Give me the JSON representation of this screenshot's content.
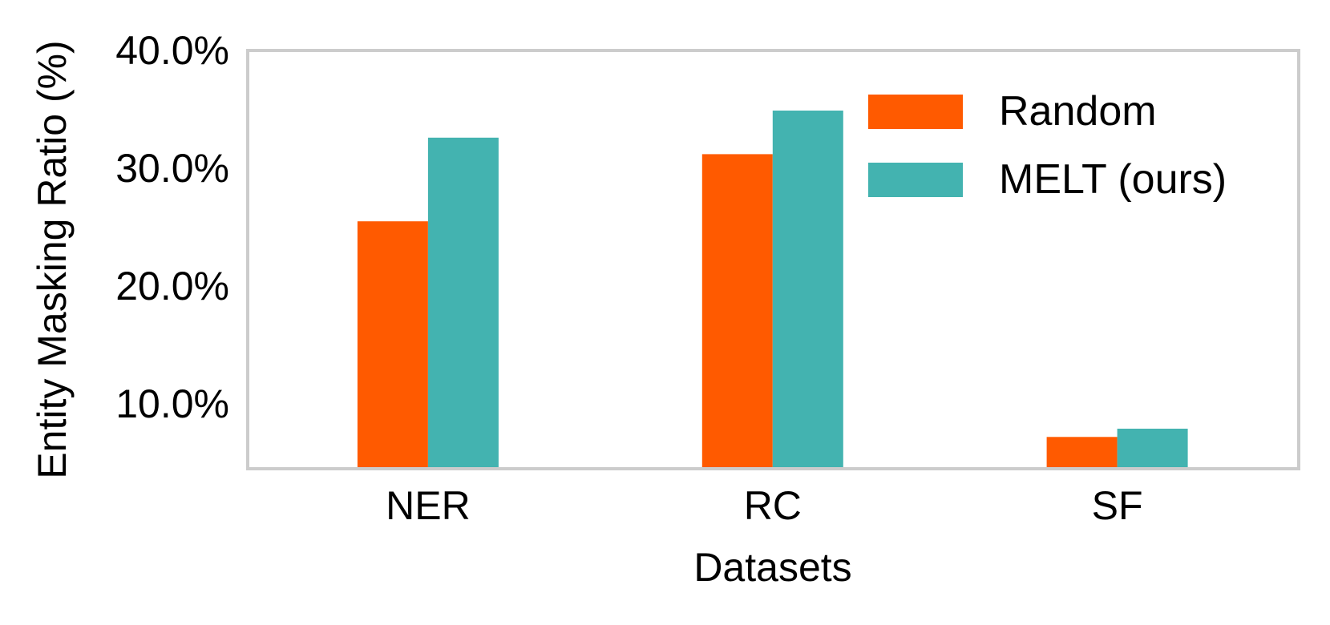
{
  "chart_data": {
    "type": "bar",
    "categories": [
      "NER",
      "RC",
      "SF"
    ],
    "series": [
      {
        "name": "Random",
        "color": "#FF5A00",
        "values": [
          25.5,
          31.2,
          7.2
        ]
      },
      {
        "name": "MELT (ours)",
        "color": "#43B3B0",
        "values": [
          32.6,
          34.9,
          7.9
        ]
      }
    ],
    "xlabel": "Datasets",
    "ylabel": "Entity Masking Ratio (%)",
    "ylim": [
      4.5,
      40.0
    ],
    "yticks": [
      10.0,
      20.0,
      30.0,
      40.0
    ],
    "ytick_labels": [
      "10.0%",
      "20.0%",
      "30.0%",
      "40.0%"
    ],
    "legend_position": "top-right",
    "grid": false,
    "frame_color": "#CCCCCC"
  }
}
